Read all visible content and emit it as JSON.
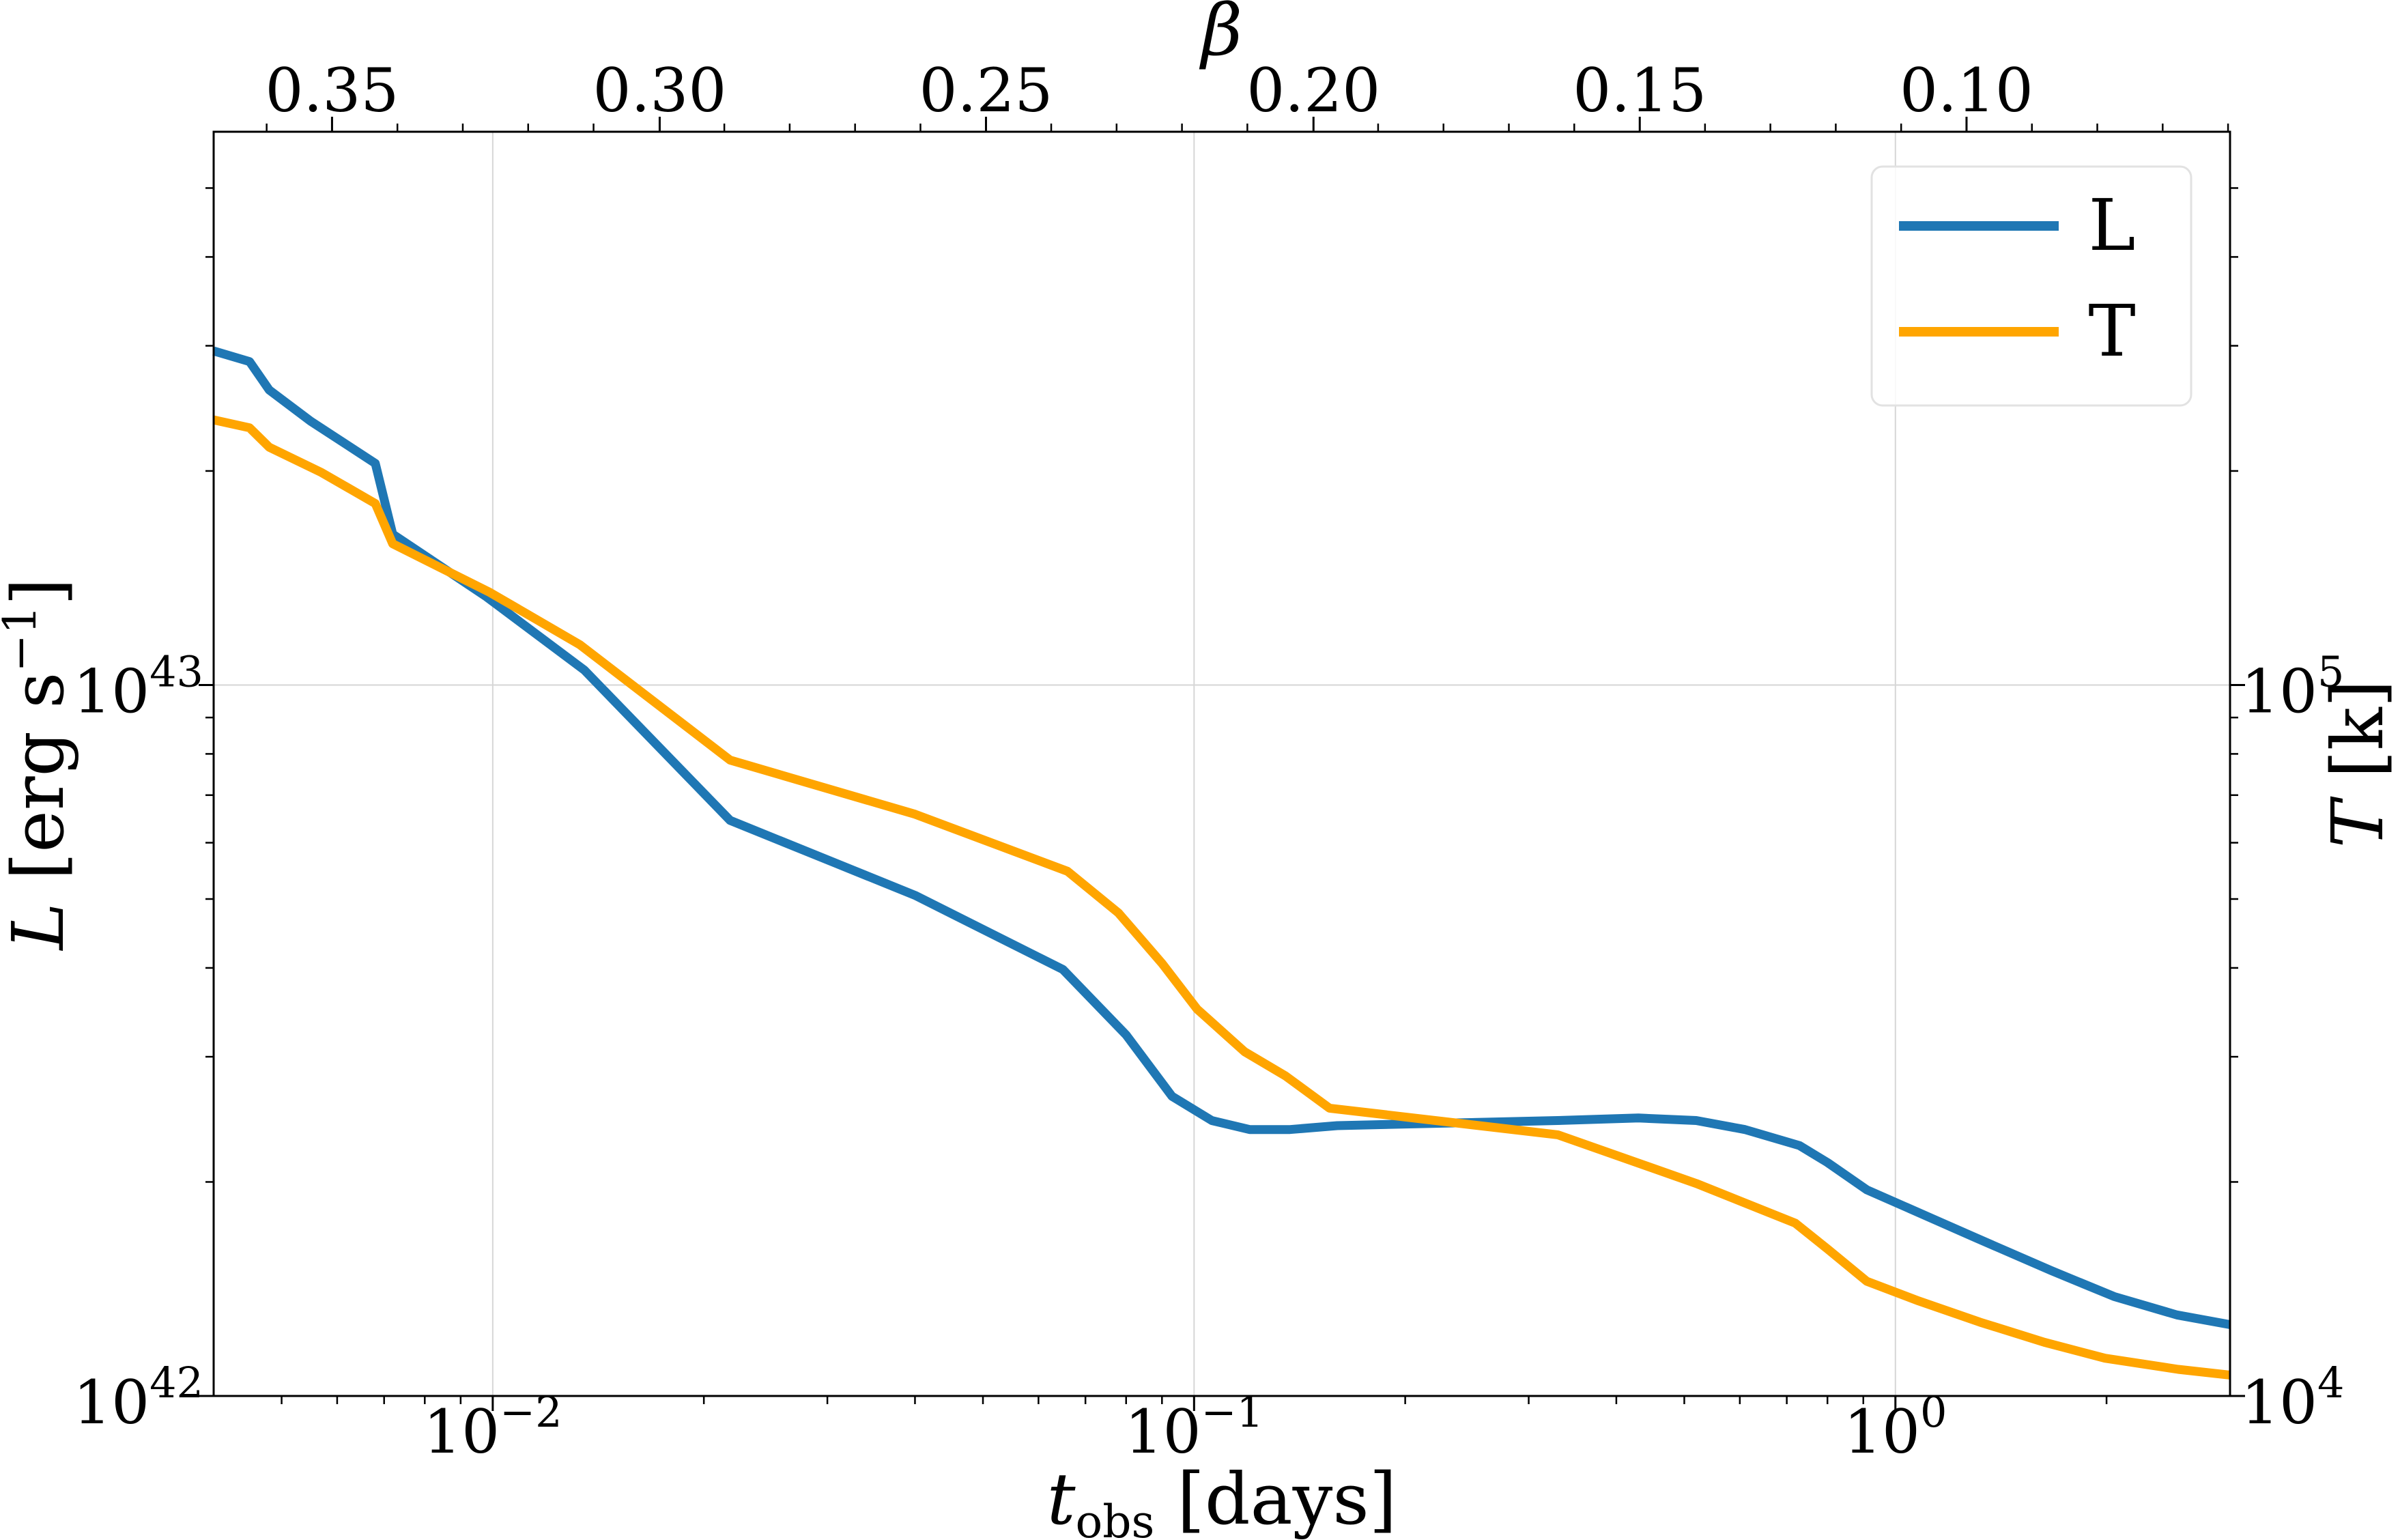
{
  "chart_data": {
    "type": "line",
    "x": {
      "label_var": "t",
      "label_sub": "obs",
      "label_unit": " [days]",
      "scale": "log",
      "range": [
        0.004,
        3.0
      ],
      "ticks": [
        {
          "value": 0.01,
          "base": "10",
          "exp": "−2"
        },
        {
          "value": 0.1,
          "base": "10",
          "exp": "−1"
        },
        {
          "value": 1.0,
          "base": "10",
          "exp": "0"
        }
      ]
    },
    "y_left": {
      "label_var": "L",
      "label_unit": " [erg s",
      "label_exp": "−1",
      "label_close": "]",
      "scale": "log",
      "range": [
        1e+42,
        6e+43
      ],
      "ticks": [
        {
          "value": 1e+42,
          "base": "10",
          "exp": "42"
        },
        {
          "value": 1e+43,
          "base": "10",
          "exp": "43"
        }
      ]
    },
    "y_right": {
      "label_var": "T",
      "label_unit": " [k]",
      "scale": "log",
      "range": [
        10000.0,
        600000.0
      ],
      "ticks": [
        {
          "value": 10000.0,
          "base": "10",
          "exp": "4"
        },
        {
          "value": 100000.0,
          "base": "10",
          "exp": "5"
        }
      ]
    },
    "x_top": {
      "label": "β",
      "ticks": [
        {
          "label": "0.35",
          "at_t": 0.0059
        },
        {
          "label": "0.30",
          "at_t": 0.0173
        },
        {
          "label": "0.25",
          "at_t": 0.0505
        },
        {
          "label": "0.20",
          "at_t": 0.148
        },
        {
          "label": "0.15",
          "at_t": 0.432
        },
        {
          "label": "0.10",
          "at_t": 1.263
        }
      ]
    },
    "series": [
      {
        "name": "L",
        "axis": "left",
        "color": "#1f77b4",
        "points": [
          [
            0.004,
            2.95e+43
          ],
          [
            0.0045,
            2.85e+43
          ],
          [
            0.0048,
            2.6e+43
          ],
          [
            0.0055,
            2.35e+43
          ],
          [
            0.0068,
            2.05e+43
          ],
          [
            0.0072,
            1.63e+43
          ],
          [
            0.0098,
            1.33e+43
          ],
          [
            0.0135,
            1.05e+43
          ],
          [
            0.0218,
            6.45e+42
          ],
          [
            0.04,
            5.06e+42
          ],
          [
            0.065,
            3.98e+42
          ],
          [
            0.08,
            3.22e+42
          ],
          [
            0.093,
            2.64e+42
          ],
          [
            0.106,
            2.44e+42
          ],
          [
            0.12,
            2.37e+42
          ],
          [
            0.137,
            2.37e+42
          ],
          [
            0.16,
            2.4e+42
          ],
          [
            0.33,
            2.44e+42
          ],
          [
            0.43,
            2.46e+42
          ],
          [
            0.52,
            2.44e+42
          ],
          [
            0.61,
            2.37e+42
          ],
          [
            0.73,
            2.25e+42
          ],
          [
            0.8,
            2.13e+42
          ],
          [
            0.91,
            1.95e+42
          ],
          [
            1.3,
            1.67e+42
          ],
          [
            1.67,
            1.5e+42
          ],
          [
            2.05,
            1.38e+42
          ],
          [
            2.52,
            1.3e+42
          ],
          [
            3.0,
            1.26e+42
          ]
        ]
      },
      {
        "name": "T",
        "axis": "right",
        "color": "#ffa500",
        "points": [
          [
            0.004,
            236000.0
          ],
          [
            0.0045,
            230000.0
          ],
          [
            0.0048,
            216000.0
          ],
          [
            0.0057,
            199000.0
          ],
          [
            0.0068,
            180000.0
          ],
          [
            0.0072,
            158000.0
          ],
          [
            0.0099,
            135000.0
          ],
          [
            0.0133,
            114000.0
          ],
          [
            0.0218,
            78400.0
          ],
          [
            0.04,
            65800.0
          ],
          [
            0.066,
            54700.0
          ],
          [
            0.078,
            47800.0
          ],
          [
            0.09,
            40600.0
          ],
          [
            0.101,
            35000.0
          ],
          [
            0.118,
            30500.0
          ],
          [
            0.135,
            28200.0
          ],
          [
            0.156,
            25400.0
          ],
          [
            0.33,
            23300.0
          ],
          [
            0.52,
            19900.0
          ],
          [
            0.72,
            17500.0
          ],
          [
            0.8,
            16100.0
          ],
          [
            0.91,
            14500.0
          ],
          [
            1.08,
            13600.0
          ],
          [
            1.32,
            12700.0
          ],
          [
            1.63,
            11900.0
          ],
          [
            1.99,
            11300.0
          ],
          [
            2.53,
            10900.0
          ],
          [
            3.0,
            10700.0
          ]
        ]
      }
    ],
    "legend": {
      "position": "top-right",
      "entries": [
        "L",
        "T"
      ]
    },
    "grid": true
  }
}
